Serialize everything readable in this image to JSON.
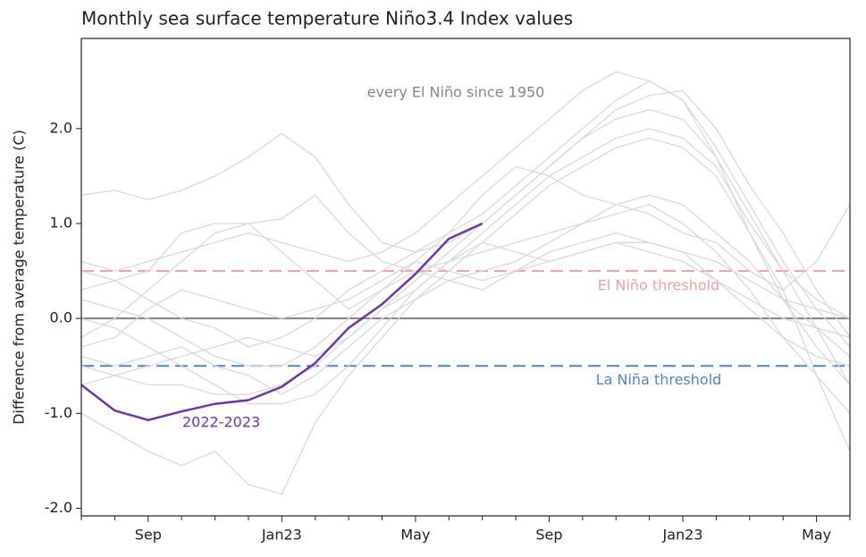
{
  "chart_data": {
    "type": "line",
    "title": "Monthly sea surface temperature Niño3.4 Index values",
    "ylabel": "Difference from average temperature (C)",
    "annotation": "every El Niño since 1950",
    "categories": [
      null,
      null,
      "Sep",
      null,
      null,
      null,
      "Jan23",
      null,
      null,
      null,
      "May",
      null,
      null,
      null,
      "Sep",
      null,
      null,
      null,
      "Jan23",
      null,
      null,
      null,
      "May",
      null
    ],
    "ylim": [
      -2.08,
      2.95
    ],
    "yticks": [
      {
        "value": -2,
        "label": "-2.0"
      },
      {
        "value": -1,
        "label": "-1.0"
      },
      {
        "value": 0,
        "label": "0.0"
      },
      {
        "value": 1,
        "label": "1.0"
      },
      {
        "value": 2,
        "label": "2.0"
      }
    ],
    "baseline": 0,
    "baseline_color": "#808080",
    "thresholds": [
      {
        "label": "El Niño threshold",
        "value": 0.5,
        "color": "#f0a0a0"
      },
      {
        "label": "La Niña threshold",
        "value": -0.5,
        "color": "#4f86c6"
      }
    ],
    "series": [
      {
        "color": "#d9d9d9",
        "values": [
          0.6,
          0.5,
          0.6,
          0.7,
          0.8,
          0.9,
          0.8,
          0.7,
          0.6,
          0.7,
          0.9,
          1.2,
          1.5,
          1.8,
          2.1,
          2.4,
          2.6,
          2.5,
          2.3,
          1.8,
          1.2,
          0.6,
          0.1,
          -0.3
        ]
      },
      {
        "color": "#d9d9d9",
        "values": [
          -0.5,
          -0.6,
          -0.7,
          -0.7,
          -0.8,
          -0.8,
          -0.7,
          -0.5,
          -0.2,
          0.1,
          0.4,
          0.7,
          1.0,
          1.3,
          1.6,
          1.9,
          2.1,
          2.2,
          2.1,
          1.7,
          1.1,
          0.5,
          -0.1,
          -0.7
        ]
      },
      {
        "color": "#d9d9d9",
        "values": [
          1.3,
          1.35,
          1.25,
          1.35,
          1.5,
          1.7,
          1.95,
          1.7,
          1.2,
          0.8,
          0.7,
          0.8,
          1.0,
          1.3,
          1.6,
          1.9,
          2.2,
          2.35,
          2.4,
          2.0,
          1.4,
          0.9,
          0.3,
          -0.2
        ]
      },
      {
        "color": "#d9d9d9",
        "values": [
          -1.0,
          -1.2,
          -1.4,
          -1.55,
          -1.4,
          -1.75,
          -1.85,
          -1.1,
          -0.6,
          -0.2,
          0.2,
          0.5,
          0.8,
          1.1,
          1.4,
          1.6,
          1.8,
          1.9,
          1.8,
          1.5,
          0.9,
          0.3,
          -0.6,
          -1.4
        ]
      },
      {
        "color": "#d9d9d9",
        "values": [
          0.2,
          0.1,
          0.0,
          -0.2,
          -0.4,
          -0.5,
          -0.5,
          -0.3,
          0.0,
          0.3,
          0.5,
          0.6,
          0.7,
          0.8,
          0.9,
          1.0,
          1.1,
          1.2,
          1.0,
          0.7,
          0.3,
          -0.2,
          -0.6,
          -1.0
        ]
      },
      {
        "color": "#d9d9d9",
        "values": [
          -0.3,
          -0.2,
          0.1,
          0.3,
          0.2,
          0.1,
          0.0,
          0.1,
          0.2,
          0.4,
          0.6,
          0.5,
          0.4,
          0.5,
          0.7,
          0.8,
          0.9,
          0.8,
          0.7,
          0.6,
          0.4,
          0.2,
          0.1,
          0.0
        ]
      },
      {
        "color": "#d9d9d9",
        "values": [
          0.3,
          0.4,
          0.5,
          0.9,
          1.0,
          1.0,
          1.05,
          1.3,
          0.9,
          0.6,
          0.5,
          0.4,
          0.5,
          0.6,
          0.8,
          1.0,
          1.2,
          1.3,
          1.2,
          0.9,
          0.6,
          0.2,
          -0.1,
          -0.4
        ]
      },
      {
        "color": "#d9d9d9",
        "values": [
          -0.7,
          -0.6,
          -0.5,
          -0.4,
          -0.3,
          -0.2,
          -0.3,
          -0.4,
          -0.2,
          0.1,
          0.3,
          0.6,
          0.9,
          1.2,
          1.5,
          1.7,
          1.9,
          2.0,
          1.9,
          1.6,
          1.0,
          0.5,
          0.2,
          0.0
        ]
      },
      {
        "color": "#d9d9d9",
        "values": [
          0.0,
          -0.1,
          -0.3,
          -0.5,
          -0.7,
          -0.9,
          -0.9,
          -0.8,
          -0.5,
          -0.1,
          0.3,
          0.6,
          0.8,
          0.7,
          0.6,
          0.7,
          0.8,
          0.7,
          0.6,
          0.4,
          0.1,
          -0.2,
          -0.4,
          -0.5
        ]
      },
      {
        "color": "#d9d9d9",
        "values": [
          -0.4,
          -0.5,
          -0.4,
          -0.3,
          -0.5,
          -0.6,
          -0.8,
          -0.6,
          -0.3,
          0.0,
          0.2,
          0.4,
          0.3,
          0.5,
          0.6,
          0.7,
          0.8,
          0.8,
          0.7,
          0.4,
          0.2,
          0.0,
          -0.1,
          -0.2
        ]
      },
      {
        "color": "#d9d9d9",
        "values": [
          0.5,
          0.4,
          0.2,
          0.0,
          -0.1,
          -0.3,
          -0.2,
          0.0,
          0.3,
          0.5,
          0.7,
          0.9,
          1.1,
          1.4,
          1.7,
          2.0,
          2.3,
          2.5,
          2.3,
          1.7,
          0.9,
          0.2,
          -0.3,
          -0.7
        ]
      },
      {
        "color": "#d9d9d9",
        "values": [
          -0.2,
          0.0,
          0.3,
          0.6,
          0.9,
          1.0,
          0.7,
          0.4,
          0.1,
          0.3,
          0.6,
          0.9,
          1.3,
          1.6,
          1.5,
          1.3,
          1.2,
          1.1,
          0.9,
          0.8,
          0.5,
          0.3,
          0.6,
          1.2
        ]
      },
      {
        "name": "2022-2023",
        "color": "#7035a8",
        "values": [
          -0.7,
          -0.97,
          -1.07,
          -0.98,
          -0.9,
          -0.86,
          -0.72,
          -0.47,
          -0.1,
          0.15,
          0.47,
          0.84,
          1.0,
          null,
          null,
          null,
          null,
          null,
          null,
          null,
          null,
          null,
          null,
          null
        ]
      }
    ]
  }
}
